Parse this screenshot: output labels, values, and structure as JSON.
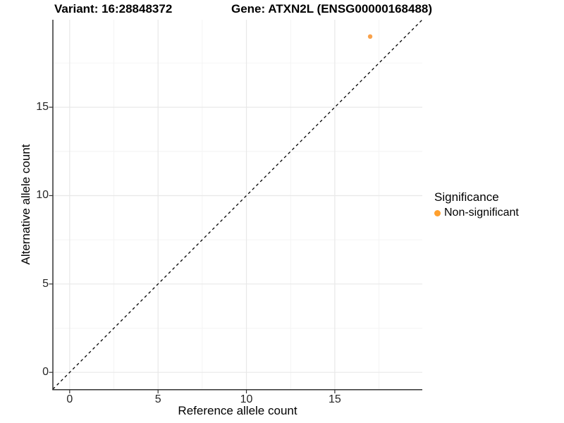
{
  "titles": {
    "variant": "Variant: 16:28848372",
    "gene": "Gene: ATXN2L (ENSG00000168488)"
  },
  "axes": {
    "x_label": "Reference allele count",
    "y_label": "Alternative allele count"
  },
  "legend": {
    "title": "Significance",
    "items": [
      {
        "label": "Non-significant",
        "color": "#FFA02E"
      }
    ]
  },
  "style": {
    "grid_major_color": "#E8E8E8",
    "grid_minor_color": "#F4F4F4",
    "axis_color": "#333333",
    "reference_line_color": "#000000",
    "point_color": "#F9A24B"
  },
  "chart_data": {
    "type": "scatter",
    "title": "Variant: 16:28848372 | Gene: ATXN2L (ENSG00000168488)",
    "xlabel": "Reference allele count",
    "ylabel": "Alternative allele count",
    "xlim": [
      -0.95,
      19.95
    ],
    "ylim": [
      -0.95,
      19.95
    ],
    "x_ticks": [
      0,
      5,
      10,
      15
    ],
    "y_ticks": [
      0,
      5,
      10,
      15
    ],
    "grid": true,
    "minor_grid": true,
    "legend_position": "right",
    "reference_line": {
      "slope": 1,
      "intercept": 0,
      "style": "dashed",
      "color": "#000000"
    },
    "series": [
      {
        "name": "Non-significant",
        "color": "#FFA02E",
        "points": [
          {
            "x": 17,
            "y": 19
          }
        ]
      }
    ]
  }
}
